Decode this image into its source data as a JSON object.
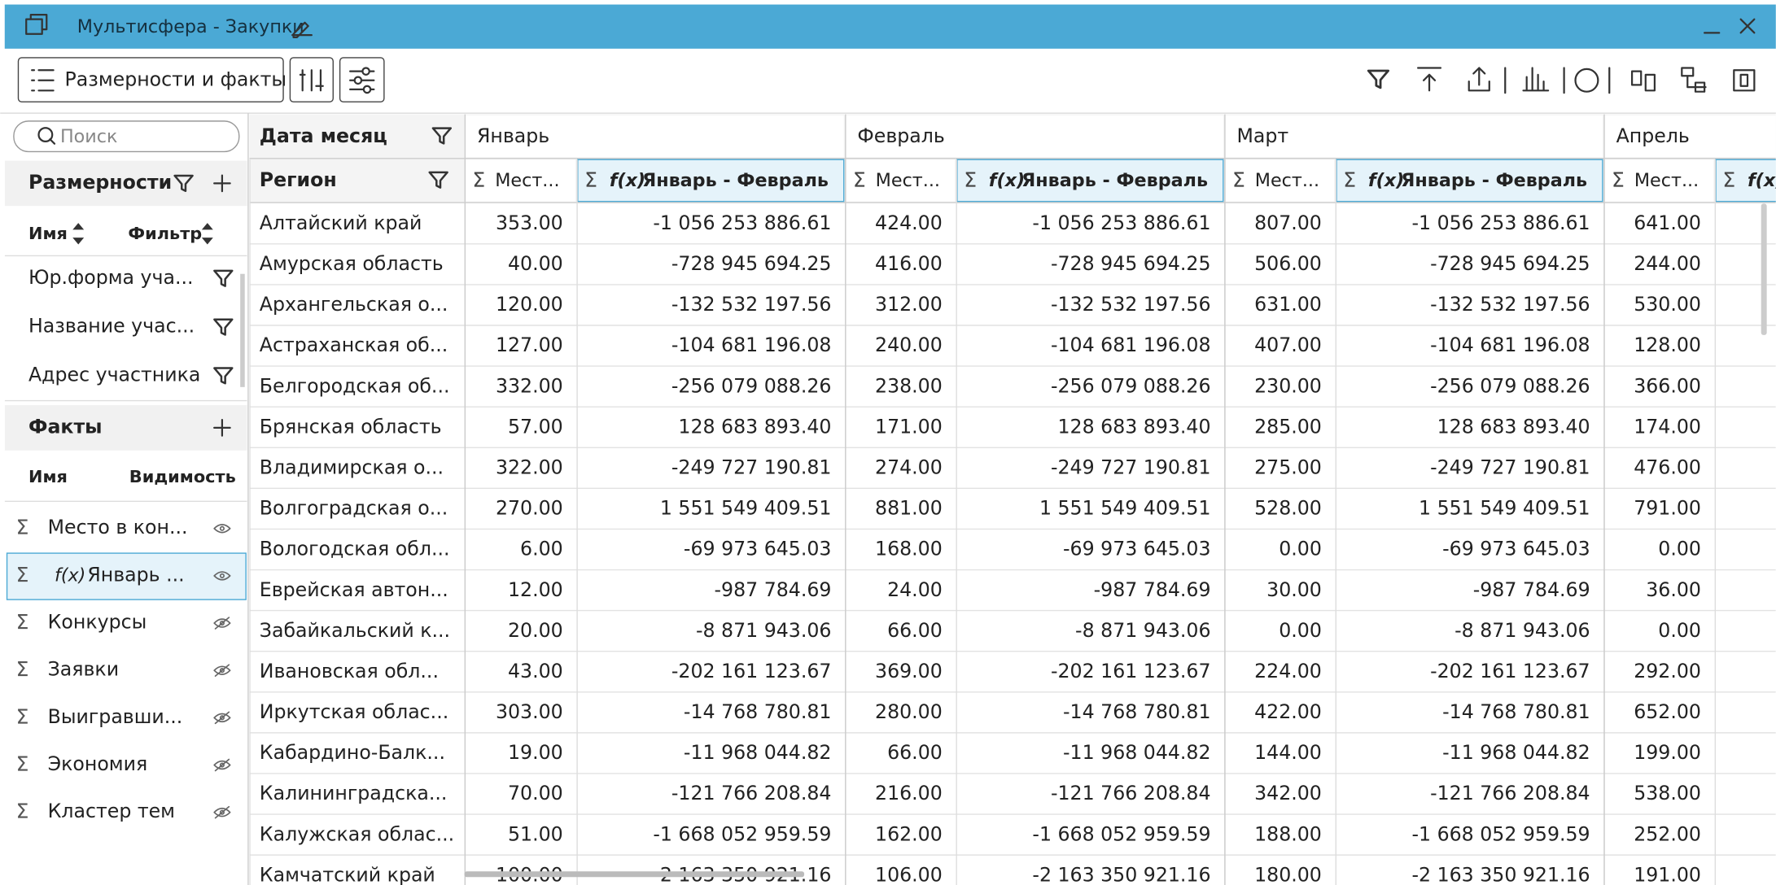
{
  "header": {
    "title": "Мультисфера - Закупки"
  },
  "toolbar": {
    "dims_button": "Размерности и факты"
  },
  "symbols": {
    "sum": "Σ"
  },
  "sidebar": {
    "search_placeholder": "Поиск",
    "dimensions": {
      "title": "Размерности",
      "columns": [
        "Имя",
        "Фильтр"
      ],
      "items": [
        "Юр.форма уча...",
        "Название учас...",
        "Адрес участника"
      ]
    },
    "facts": {
      "title": "Факты",
      "columns": [
        "Имя",
        "Видимость"
      ],
      "items": [
        {
          "name": "Место в кон...",
          "visible": true
        },
        {
          "formula": "f(x)",
          "name": "Январь ...",
          "visible": true,
          "selected": true
        },
        {
          "name": "Конкурсы",
          "visible": false
        },
        {
          "name": "Заявки",
          "visible": false
        },
        {
          "name": "Выигравши...",
          "visible": false
        },
        {
          "name": "Экономия",
          "visible": false
        },
        {
          "name": "Кластер тем",
          "visible": false
        }
      ]
    }
  },
  "table": {
    "column_dimension": "Дата месяц",
    "row_dimension": "Регион",
    "months": [
      "Январь",
      "Февраль",
      "Март",
      "Апрель"
    ],
    "measures": [
      {
        "name": "Мест..."
      },
      {
        "formula": "f(x)",
        "name": "Январь - Февраль"
      }
    ],
    "rows": [
      [
        "Алтайский край",
        "353.00",
        "-1 056 253 886.61",
        "424.00",
        "-1 056 253 886.61",
        "807.00",
        "-1 056 253 886.61",
        "641.00"
      ],
      [
        "Амурская область",
        "40.00",
        "-728 945 694.25",
        "416.00",
        "-728 945 694.25",
        "506.00",
        "-728 945 694.25",
        "244.00"
      ],
      [
        "Архангельская о...",
        "120.00",
        "-132 532 197.56",
        "312.00",
        "-132 532 197.56",
        "631.00",
        "-132 532 197.56",
        "530.00"
      ],
      [
        "Астраханская об...",
        "127.00",
        "-104 681 196.08",
        "240.00",
        "-104 681 196.08",
        "407.00",
        "-104 681 196.08",
        "128.00"
      ],
      [
        "Белгородская об...",
        "332.00",
        "-256 079 088.26",
        "238.00",
        "-256 079 088.26",
        "230.00",
        "-256 079 088.26",
        "366.00"
      ],
      [
        "Брянская область",
        "57.00",
        "128 683 893.40",
        "171.00",
        "128 683 893.40",
        "285.00",
        "128 683 893.40",
        "174.00"
      ],
      [
        "Владимирская о...",
        "322.00",
        "-249 727 190.81",
        "274.00",
        "-249 727 190.81",
        "275.00",
        "-249 727 190.81",
        "476.00"
      ],
      [
        "Волгоградская о...",
        "270.00",
        "1 551 549 409.51",
        "881.00",
        "1 551 549 409.51",
        "528.00",
        "1 551 549 409.51",
        "791.00"
      ],
      [
        "Вологодская обл...",
        "6.00",
        "-69 973 645.03",
        "168.00",
        "-69 973 645.03",
        "0.00",
        "-69 973 645.03",
        "0.00"
      ],
      [
        "Еврейская автон...",
        "12.00",
        "-987 784.69",
        "24.00",
        "-987 784.69",
        "30.00",
        "-987 784.69",
        "36.00"
      ],
      [
        "Забайкальский к...",
        "20.00",
        "-8 871 943.06",
        "66.00",
        "-8 871 943.06",
        "0.00",
        "-8 871 943.06",
        "0.00"
      ],
      [
        "Ивановская обл...",
        "43.00",
        "-202 161 123.67",
        "369.00",
        "-202 161 123.67",
        "224.00",
        "-202 161 123.67",
        "292.00"
      ],
      [
        "Иркутская облас...",
        "303.00",
        "-14 768 780.81",
        "280.00",
        "-14 768 780.81",
        "422.00",
        "-14 768 780.81",
        "652.00"
      ],
      [
        "Кабардино-Балк...",
        "19.00",
        "-11 968 044.82",
        "66.00",
        "-11 968 044.82",
        "144.00",
        "-11 968 044.82",
        "199.00"
      ],
      [
        "Калининградска...",
        "70.00",
        "-121 766 208.84",
        "216.00",
        "-121 766 208.84",
        "342.00",
        "-121 766 208.84",
        "538.00"
      ],
      [
        "Калужская облас...",
        "51.00",
        "-1 668 052 959.59",
        "162.00",
        "-1 668 052 959.59",
        "188.00",
        "-1 668 052 959.59",
        "252.00"
      ],
      [
        "Камчатский край",
        "100.00",
        "-2 163 350 921.16",
        "106.00",
        "-2 163 350 921.16",
        "180.00",
        "-2 163 350 921.16",
        "191.00"
      ]
    ]
  }
}
